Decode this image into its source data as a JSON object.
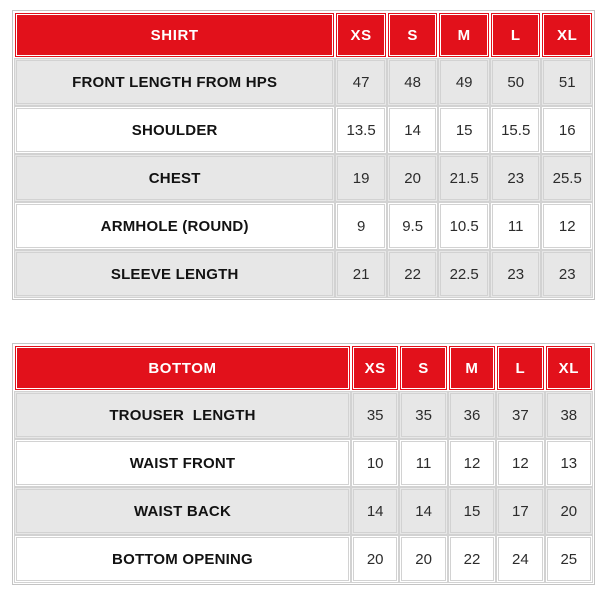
{
  "colors": {
    "header_red": "#e2111b",
    "header_text": "#ffffff",
    "row_alt_gray": "#e7e7e7",
    "row_white": "#ffffff",
    "cell_border": "#d2d2d2",
    "outer_border": "#c4c4c4",
    "label_text": "#121212",
    "value_text": "#2c2c2c"
  },
  "chart_data": [
    {
      "type": "table",
      "title": "SHIRT",
      "size_columns": [
        "XS",
        "S",
        "M",
        "L",
        "XL"
      ],
      "rows": [
        {
          "label": "FRONT LENGTH FROM HPS",
          "values": [
            47,
            48,
            49,
            50,
            51
          ]
        },
        {
          "label": "SHOULDER",
          "values": [
            13.5,
            14,
            15,
            15.5,
            16
          ]
        },
        {
          "label": "CHEST",
          "values": [
            19,
            20,
            21.5,
            23,
            25.5
          ]
        },
        {
          "label": "ARMHOLE (ROUND)",
          "values": [
            9,
            9.5,
            10.5,
            11,
            12
          ]
        },
        {
          "label": "SLEEVE LENGTH",
          "values": [
            21,
            22,
            22.5,
            23,
            23
          ]
        }
      ]
    },
    {
      "type": "table",
      "title": "BOTTOM",
      "size_columns": [
        "XS",
        "S",
        "M",
        "L",
        "XL"
      ],
      "rows": [
        {
          "label": "TROUSER  LENGTH",
          "values": [
            35,
            35,
            36,
            37,
            38
          ]
        },
        {
          "label": "WAIST FRONT",
          "values": [
            10,
            11,
            12,
            12,
            13
          ]
        },
        {
          "label": "WAIST BACK",
          "values": [
            14,
            14,
            15,
            17,
            20
          ]
        },
        {
          "label": "BOTTOM OPENING",
          "values": [
            20,
            20,
            22,
            24,
            25
          ]
        }
      ]
    }
  ]
}
